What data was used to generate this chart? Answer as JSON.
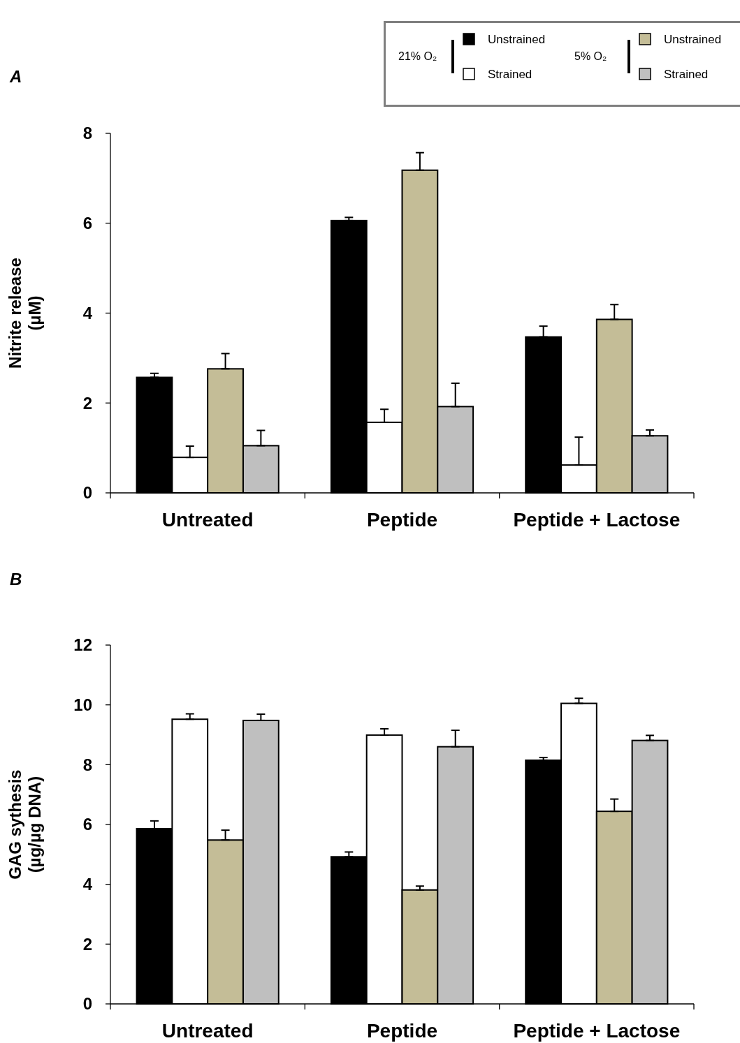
{
  "chart_data": [
    {
      "type": "bar",
      "title": "A",
      "ylabel": "Nitrite release\n(µM)",
      "categories": [
        "Untreated",
        "Peptide",
        "Peptide + Lactose"
      ],
      "ylim": [
        0,
        8
      ],
      "yticks": [
        0,
        2,
        4,
        6,
        8
      ],
      "legend": "top right",
      "annotations": [
        "21% O₂",
        "5% O₂"
      ],
      "series": [
        {
          "name": "Unstrained",
          "color": "#000000",
          "values": [
            2.57,
            6.06,
            3.47
          ],
          "errors": [
            [
              2.57,
              2.66
            ],
            [
              6.06,
              6.13
            ],
            [
              3.47,
              3.71
            ]
          ]
        },
        {
          "name": "Strained",
          "color": "#ffffff",
          "values": [
            0.79,
            1.57,
            0.62
          ],
          "errors": [
            [
              0.79,
              1.04
            ],
            [
              1.57,
              1.86
            ],
            [
              0.62,
              1.24
            ]
          ]
        },
        {
          "name": "Unstrained",
          "color": "#c4bd97",
          "values": [
            2.76,
            7.18,
            3.86
          ],
          "errors": [
            [
              2.76,
              3.1
            ],
            [
              7.18,
              7.57
            ],
            [
              3.86,
              4.19
            ]
          ]
        },
        {
          "name": "Strained",
          "color": "#bfbfbf",
          "values": [
            1.05,
            1.92,
            1.27
          ],
          "errors": [
            [
              1.05,
              1.39
            ],
            [
              1.92,
              2.44
            ],
            [
              1.27,
              1.4
            ]
          ]
        }
      ]
    },
    {
      "type": "bar",
      "title": "B",
      "ylabel": "GAG sythesis\n(µg/µg DNA)",
      "categories": [
        "Untreated",
        "Peptide",
        "Peptide + Lactose"
      ],
      "ylim": [
        0,
        12
      ],
      "yticks": [
        0,
        2,
        4,
        6,
        8,
        10,
        12
      ],
      "series": [
        {
          "color": "#000000",
          "values": [
            5.86,
            4.92,
            8.15
          ],
          "errors": [
            [
              5.86,
              6.12
            ],
            [
              4.92,
              5.08
            ],
            [
              8.15,
              8.24
            ]
          ]
        },
        {
          "color": "#ffffff",
          "values": [
            9.52,
            8.99,
            10.05
          ],
          "errors": [
            [
              9.52,
              9.7
            ],
            [
              8.99,
              9.2
            ],
            [
              10.05,
              10.22
            ]
          ]
        },
        {
          "color": "#c4bd97",
          "values": [
            5.48,
            3.81,
            6.44
          ],
          "errors": [
            [
              5.48,
              5.81
            ],
            [
              3.81,
              3.94
            ],
            [
              6.44,
              6.85
            ]
          ]
        },
        {
          "color": "#bfbfbf",
          "values": [
            9.48,
            8.6,
            8.81
          ],
          "errors": [
            [
              9.48,
              9.69
            ],
            [
              8.6,
              9.15
            ],
            [
              8.81,
              8.98
            ]
          ]
        }
      ]
    }
  ]
}
